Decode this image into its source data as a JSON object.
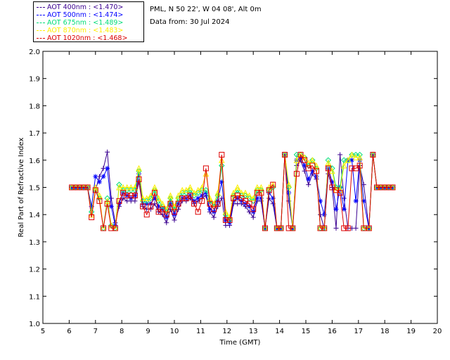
{
  "header": {
    "site": "PML, N 50 22', W 04 08', Alt 0m",
    "date_text": "Data from: 30 Jul 2024"
  },
  "legend": [
    {
      "label": "AOT  400nm : <1.470>",
      "color": "#3a0090"
    },
    {
      "label": "AOT  500nm : <1.474>",
      "color": "#0000ff"
    },
    {
      "label": "AOT  675nm : <1.489>",
      "color": "#00dd77"
    },
    {
      "label": "AOT  870nm : <1.483>",
      "color": "#ffee00"
    },
    {
      "label": "AOT 1020nm : <1.468>",
      "color": "#dd0000"
    }
  ],
  "chart_data": {
    "type": "line",
    "title": "",
    "xlabel": "Time (GMT)",
    "ylabel": "Real Part of Refractive Index",
    "xlim": [
      5,
      20
    ],
    "ylim": [
      1.0,
      2.0
    ],
    "xticks": [
      5,
      6,
      7,
      8,
      9,
      10,
      11,
      12,
      13,
      14,
      15,
      16,
      17,
      18,
      19,
      20
    ],
    "yticks": [
      "1.0",
      "1.1",
      "1.2",
      "1.3",
      "1.4",
      "1.5",
      "1.6",
      "1.7",
      "1.8",
      "1.9",
      "2.0"
    ],
    "grid": false,
    "legend_position": "top-left outside",
    "series": [
      {
        "name": "AOT  400nm",
        "color": "#3a0090",
        "marker": "plus",
        "x": [
          6.1,
          6.25,
          6.4,
          6.55,
          6.7,
          6.85,
          7.0,
          7.15,
          7.3,
          7.45,
          7.6,
          7.75,
          7.9,
          8.05,
          8.2,
          8.35,
          8.5,
          8.65,
          8.8,
          8.95,
          9.1,
          9.25,
          9.4,
          9.55,
          9.7,
          9.85,
          10.0,
          10.15,
          10.3,
          10.45,
          10.6,
          10.75,
          10.9,
          11.05,
          11.2,
          11.35,
          11.5,
          11.65,
          11.8,
          11.95,
          12.1,
          12.25,
          12.4,
          12.55,
          12.7,
          12.85,
          13.0,
          13.15,
          13.3,
          13.45,
          13.6,
          13.75,
          13.9,
          14.05,
          14.2,
          14.35,
          14.5,
          14.65,
          14.8,
          14.95,
          15.1,
          15.25,
          15.4,
          15.55,
          15.7,
          15.85,
          16.0,
          16.15,
          16.3,
          16.45,
          16.6,
          16.75,
          16.9,
          17.05,
          17.2,
          17.4,
          17.55,
          17.7,
          17.85,
          18.0,
          18.15,
          18.3
        ],
        "values": [
          1.5,
          1.5,
          1.5,
          1.5,
          1.5,
          1.4,
          1.49,
          1.54,
          1.57,
          1.63,
          1.46,
          1.37,
          1.43,
          1.46,
          1.45,
          1.45,
          1.45,
          1.52,
          1.43,
          1.42,
          1.42,
          1.44,
          1.41,
          1.4,
          1.37,
          1.42,
          1.38,
          1.42,
          1.45,
          1.45,
          1.46,
          1.44,
          1.45,
          1.46,
          1.47,
          1.41,
          1.39,
          1.43,
          1.46,
          1.36,
          1.36,
          1.44,
          1.44,
          1.44,
          1.43,
          1.41,
          1.39,
          1.45,
          1.45,
          1.35,
          1.46,
          1.44,
          1.35,
          1.35,
          1.62,
          1.45,
          1.35,
          1.58,
          1.6,
          1.56,
          1.51,
          1.55,
          1.53,
          1.4,
          1.35,
          1.55,
          1.5,
          1.35,
          1.62,
          1.46,
          1.35,
          1.35,
          1.35,
          1.58,
          1.51,
          1.35,
          1.62,
          1.5,
          1.5,
          1.5,
          1.5,
          1.5
        ]
      },
      {
        "name": "AOT  500nm",
        "color": "#0000ff",
        "marker": "star",
        "x": [
          6.1,
          6.25,
          6.4,
          6.55,
          6.7,
          6.85,
          7.0,
          7.15,
          7.3,
          7.45,
          7.6,
          7.75,
          7.9,
          8.05,
          8.2,
          8.35,
          8.5,
          8.65,
          8.8,
          8.95,
          9.1,
          9.25,
          9.4,
          9.55,
          9.7,
          9.85,
          10.0,
          10.15,
          10.3,
          10.45,
          10.6,
          10.75,
          10.9,
          11.05,
          11.2,
          11.35,
          11.5,
          11.65,
          11.8,
          11.95,
          12.1,
          12.25,
          12.4,
          12.55,
          12.7,
          12.85,
          13.0,
          13.15,
          13.3,
          13.45,
          13.6,
          13.75,
          13.9,
          14.05,
          14.2,
          14.35,
          14.5,
          14.65,
          14.8,
          14.95,
          15.1,
          15.25,
          15.4,
          15.55,
          15.7,
          15.85,
          16.0,
          16.15,
          16.3,
          16.45,
          16.6,
          16.75,
          16.9,
          17.05,
          17.2,
          17.4,
          17.55,
          17.7,
          17.85,
          18.0,
          18.15,
          18.3
        ],
        "values": [
          1.5,
          1.5,
          1.5,
          1.5,
          1.5,
          1.43,
          1.54,
          1.52,
          1.54,
          1.57,
          1.43,
          1.36,
          1.44,
          1.48,
          1.47,
          1.46,
          1.47,
          1.55,
          1.44,
          1.44,
          1.44,
          1.46,
          1.43,
          1.42,
          1.39,
          1.44,
          1.4,
          1.44,
          1.46,
          1.46,
          1.47,
          1.45,
          1.46,
          1.47,
          1.48,
          1.42,
          1.41,
          1.45,
          1.52,
          1.38,
          1.37,
          1.45,
          1.46,
          1.45,
          1.44,
          1.43,
          1.41,
          1.46,
          1.46,
          1.35,
          1.48,
          1.46,
          1.35,
          1.35,
          1.62,
          1.48,
          1.35,
          1.6,
          1.61,
          1.58,
          1.53,
          1.56,
          1.54,
          1.45,
          1.4,
          1.57,
          1.52,
          1.42,
          1.5,
          1.42,
          1.6,
          1.6,
          1.45,
          1.6,
          1.45,
          1.35,
          1.62,
          1.5,
          1.5,
          1.5,
          1.5,
          1.5
        ]
      },
      {
        "name": "AOT  675nm",
        "color": "#00dd77",
        "marker": "diamond",
        "x": [
          6.1,
          6.25,
          6.4,
          6.55,
          6.7,
          6.85,
          7.0,
          7.15,
          7.3,
          7.45,
          7.6,
          7.75,
          7.9,
          8.05,
          8.2,
          8.35,
          8.5,
          8.65,
          8.8,
          8.95,
          9.1,
          9.25,
          9.4,
          9.55,
          9.7,
          9.85,
          10.0,
          10.15,
          10.3,
          10.45,
          10.6,
          10.75,
          10.9,
          11.05,
          11.2,
          11.35,
          11.5,
          11.65,
          11.8,
          11.95,
          12.1,
          12.25,
          12.4,
          12.55,
          12.7,
          12.85,
          13.0,
          13.15,
          13.3,
          13.45,
          13.6,
          13.75,
          13.9,
          14.05,
          14.2,
          14.35,
          14.5,
          14.65,
          14.8,
          14.95,
          15.1,
          15.25,
          15.4,
          15.55,
          15.7,
          15.85,
          16.0,
          16.15,
          16.3,
          16.45,
          16.6,
          16.75,
          16.9,
          17.05,
          17.2,
          17.4,
          17.55,
          17.7,
          17.85,
          18.0,
          18.15,
          18.3
        ],
        "values": [
          1.5,
          1.5,
          1.5,
          1.5,
          1.5,
          1.41,
          1.49,
          1.46,
          1.35,
          1.46,
          1.36,
          1.35,
          1.51,
          1.49,
          1.49,
          1.49,
          1.49,
          1.56,
          1.45,
          1.45,
          1.46,
          1.49,
          1.45,
          1.43,
          1.41,
          1.46,
          1.42,
          1.46,
          1.48,
          1.48,
          1.49,
          1.47,
          1.48,
          1.49,
          1.49,
          1.45,
          1.43,
          1.47,
          1.58,
          1.4,
          1.38,
          1.47,
          1.49,
          1.47,
          1.47,
          1.46,
          1.45,
          1.49,
          1.49,
          1.35,
          1.49,
          1.5,
          1.35,
          1.35,
          1.62,
          1.5,
          1.35,
          1.62,
          1.62,
          1.61,
          1.58,
          1.6,
          1.57,
          1.35,
          1.35,
          1.6,
          1.57,
          1.5,
          1.5,
          1.6,
          1.6,
          1.62,
          1.62,
          1.62,
          1.35,
          1.35,
          1.62,
          1.5,
          1.5,
          1.5,
          1.5,
          1.5
        ]
      },
      {
        "name": "AOT  870nm",
        "color": "#ffee00",
        "marker": "triangle",
        "x": [
          6.1,
          6.25,
          6.4,
          6.55,
          6.7,
          6.85,
          7.0,
          7.15,
          7.3,
          7.45,
          7.6,
          7.75,
          7.9,
          8.05,
          8.2,
          8.35,
          8.5,
          8.65,
          8.8,
          8.95,
          9.1,
          9.25,
          9.4,
          9.55,
          9.7,
          9.85,
          10.0,
          10.15,
          10.3,
          10.45,
          10.6,
          10.75,
          10.9,
          11.05,
          11.2,
          11.35,
          11.5,
          11.65,
          11.8,
          11.95,
          12.1,
          12.25,
          12.4,
          12.55,
          12.7,
          12.85,
          13.0,
          13.15,
          13.3,
          13.45,
          13.6,
          13.75,
          13.9,
          14.05,
          14.2,
          14.35,
          14.5,
          14.65,
          14.8,
          14.95,
          15.1,
          15.25,
          15.4,
          15.55,
          15.7,
          15.85,
          16.0,
          16.15,
          16.3,
          16.45,
          16.6,
          16.75,
          16.9,
          17.05,
          17.2,
          17.4,
          17.55,
          17.7,
          17.85,
          18.0,
          18.15,
          18.3
        ],
        "values": [
          1.5,
          1.5,
          1.5,
          1.5,
          1.5,
          1.4,
          1.5,
          1.47,
          1.35,
          1.45,
          1.36,
          1.35,
          1.5,
          1.5,
          1.5,
          1.5,
          1.5,
          1.57,
          1.46,
          1.46,
          1.47,
          1.5,
          1.46,
          1.44,
          1.42,
          1.47,
          1.43,
          1.47,
          1.49,
          1.49,
          1.5,
          1.48,
          1.49,
          1.5,
          1.55,
          1.46,
          1.44,
          1.48,
          1.6,
          1.41,
          1.39,
          1.48,
          1.5,
          1.48,
          1.48,
          1.47,
          1.46,
          1.5,
          1.5,
          1.35,
          1.5,
          1.51,
          1.35,
          1.35,
          1.62,
          1.51,
          1.35,
          1.6,
          1.62,
          1.61,
          1.59,
          1.6,
          1.58,
          1.35,
          1.35,
          1.59,
          1.56,
          1.49,
          1.49,
          1.58,
          1.6,
          1.62,
          1.61,
          1.61,
          1.35,
          1.35,
          1.62,
          1.5,
          1.5,
          1.5,
          1.5,
          1.5
        ]
      },
      {
        "name": "AOT 1020nm",
        "color": "#dd0000",
        "marker": "square",
        "x": [
          6.1,
          6.25,
          6.4,
          6.55,
          6.7,
          6.85,
          7.0,
          7.15,
          7.3,
          7.45,
          7.6,
          7.75,
          7.9,
          8.05,
          8.2,
          8.35,
          8.5,
          8.65,
          8.8,
          8.95,
          9.1,
          9.25,
          9.4,
          9.55,
          9.7,
          9.85,
          10.0,
          10.15,
          10.3,
          10.45,
          10.6,
          10.75,
          10.9,
          11.05,
          11.2,
          11.35,
          11.5,
          11.65,
          11.8,
          11.95,
          12.1,
          12.25,
          12.4,
          12.55,
          12.7,
          12.85,
          13.0,
          13.15,
          13.3,
          13.45,
          13.6,
          13.75,
          13.9,
          14.05,
          14.2,
          14.35,
          14.5,
          14.65,
          14.8,
          14.95,
          15.1,
          15.25,
          15.4,
          15.55,
          15.7,
          15.85,
          16.0,
          16.15,
          16.3,
          16.45,
          16.6,
          16.75,
          16.9,
          17.05,
          17.2,
          17.4,
          17.55,
          17.7,
          17.85,
          18.0,
          18.15,
          18.3
        ],
        "values": [
          1.5,
          1.5,
          1.5,
          1.5,
          1.5,
          1.39,
          1.49,
          1.45,
          1.35,
          1.44,
          1.35,
          1.35,
          1.45,
          1.48,
          1.47,
          1.47,
          1.47,
          1.53,
          1.43,
          1.4,
          1.43,
          1.48,
          1.41,
          1.42,
          1.4,
          1.44,
          1.41,
          1.44,
          1.46,
          1.46,
          1.47,
          1.44,
          1.41,
          1.45,
          1.57,
          1.44,
          1.42,
          1.44,
          1.62,
          1.38,
          1.38,
          1.46,
          1.47,
          1.46,
          1.45,
          1.44,
          1.42,
          1.48,
          1.48,
          1.35,
          1.49,
          1.51,
          1.35,
          1.35,
          1.62,
          1.35,
          1.35,
          1.55,
          1.62,
          1.6,
          1.57,
          1.58,
          1.56,
          1.35,
          1.35,
          1.57,
          1.5,
          1.49,
          1.48,
          1.35,
          1.35,
          1.57,
          1.57,
          1.58,
          1.35,
          1.35,
          1.62,
          1.5,
          1.5,
          1.5,
          1.5,
          1.5
        ]
      }
    ]
  }
}
